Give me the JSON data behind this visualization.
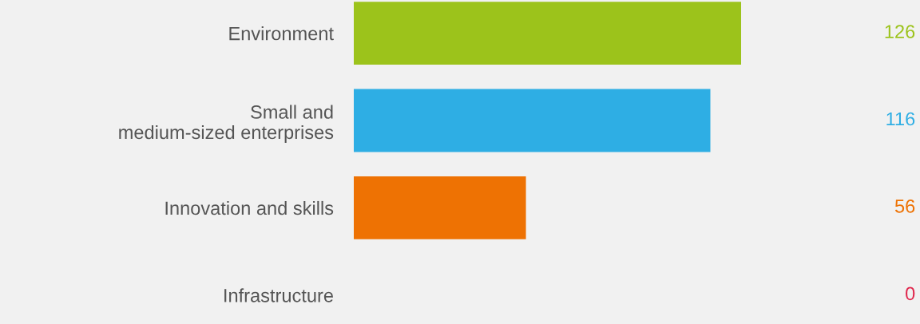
{
  "chart_data": {
    "type": "bar",
    "orientation": "horizontal",
    "categories": [
      "Environment",
      "Small and\nmedium-sized enterprises",
      "Innovation and skills",
      "Infrastructure"
    ],
    "values": [
      126,
      116,
      56,
      0
    ],
    "colors": [
      "#9cc31b",
      "#2eaee4",
      "#ee7203",
      "#e0264c"
    ],
    "tick_labels": "y",
    "data_labels": true,
    "grid": false
  }
}
